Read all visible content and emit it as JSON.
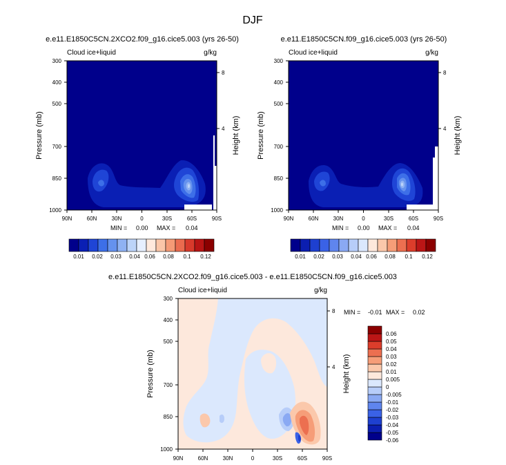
{
  "page_title": "DJF",
  "colors": {
    "lbA": [
      "#00008b",
      "#0a1fb4",
      "#1f45d6",
      "#3d6fe8",
      "#6592ee",
      "#8fb2f3",
      "#bcd4f9",
      "#e6efff",
      "#ffe9dc",
      "#fbc6a8",
      "#f59a76",
      "#ea6b4f",
      "#d83a2c",
      "#b81414",
      "#8b0000"
    ],
    "lbB": [
      "#00008b",
      "#0b1eb0",
      "#1e40d0",
      "#3a62e6",
      "#5f85ee",
      "#8aa9f3",
      "#b7cdf9",
      "#dbe8fd",
      "#fde8dc",
      "#fbc8ab",
      "#f69d78",
      "#ec6f50",
      "#dc3d2b",
      "#bb1616",
      "#8b0000"
    ]
  },
  "chart_data": [
    {
      "type": "heatmap",
      "title": "e.e11.E1850C5CN.2XCO2.f09_g16.cice5.003 (yrs 26-50)",
      "left_label": "Cloud ice+liquid",
      "right_label": "g/kg",
      "ylabel": "Pressure (mb)",
      "ylabel_right": "Height (km)",
      "x_ticks": [
        "90N",
        "60N",
        "30N",
        "0",
        "30S",
        "60S",
        "90S"
      ],
      "y_ticks": [
        "300",
        "400",
        "500",
        "700",
        "850",
        "1000"
      ],
      "y_ticks_right": [
        "8",
        "4"
      ],
      "stats": {
        "min_label": "MIN =",
        "min": "0.00",
        "max_label": "MAX =",
        "max": "0.04"
      },
      "colorbar_labels": [
        "0.01",
        "0.02",
        "0.03",
        "0.04",
        "0.06",
        "0.08",
        "0.1",
        "0.12"
      ],
      "x_range": [
        "90N",
        "90S"
      ],
      "y_range_mb": [
        300,
        1000
      ]
    },
    {
      "type": "heatmap",
      "title": "e.e11.E1850C5CN.f09_g16.cice5.003 (yrs 26-50)",
      "left_label": "Cloud ice+liquid",
      "right_label": "g/kg",
      "ylabel": "Pressure (mb)",
      "ylabel_right": "Height (km)",
      "x_ticks": [
        "90N",
        "60N",
        "30N",
        "0",
        "30S",
        "60S",
        "90S"
      ],
      "y_ticks": [
        "300",
        "400",
        "500",
        "700",
        "850",
        "1000"
      ],
      "y_ticks_right": [
        "8",
        "4"
      ],
      "stats": {
        "min_label": "MIN =",
        "min": "0.00",
        "max_label": "MAX =",
        "max": "0.04"
      },
      "colorbar_labels": [
        "0.01",
        "0.02",
        "0.03",
        "0.04",
        "0.06",
        "0.08",
        "0.1",
        "0.12"
      ],
      "x_range": [
        "90N",
        "90S"
      ],
      "y_range_mb": [
        300,
        1000
      ]
    },
    {
      "type": "heatmap",
      "title": "e.e11.E1850C5CN.2XCO2.f09_g16.cice5.003 - e.e11.E1850C5CN.f09_g16.cice5.003",
      "left_label": "Cloud ice+liquid",
      "right_label": "g/kg",
      "ylabel": "Pressure (mb)",
      "ylabel_right": "Height (km)",
      "x_ticks": [
        "90N",
        "60N",
        "30N",
        "0",
        "30S",
        "60S",
        "90S"
      ],
      "y_ticks": [
        "300",
        "400",
        "500",
        "700",
        "850",
        "1000"
      ],
      "y_ticks_right": [
        "8",
        "4"
      ],
      "stats": {
        "min_label": "MIN =",
        "min": "-0.01",
        "max_label": "MAX =",
        "max": "0.02"
      },
      "colorbar_labels": [
        "0.06",
        "0.05",
        "0.04",
        "0.03",
        "0.02",
        "0.01",
        "0.005",
        "0",
        "-0.005",
        "-0.01",
        "-0.02",
        "-0.03",
        "-0.04",
        "-0.05",
        "-0.06"
      ],
      "x_range": [
        "90N",
        "90S"
      ],
      "y_range_mb": [
        300,
        1000
      ]
    }
  ]
}
